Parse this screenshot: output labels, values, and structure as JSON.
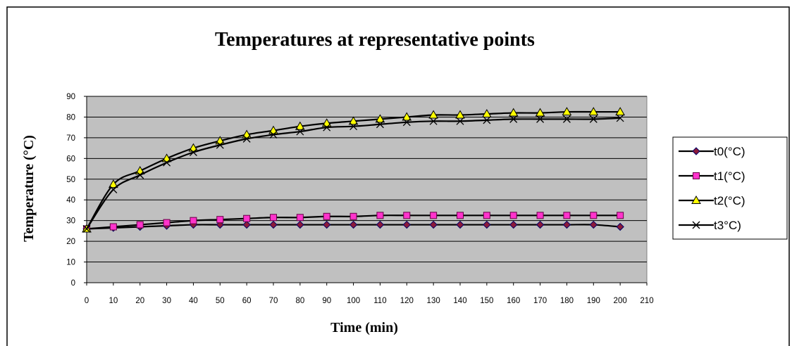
{
  "chart_data": {
    "type": "line",
    "title": "Temperatures at representative points",
    "xlabel": "Time (min)",
    "ylabel": "Temperature (°C)",
    "xlim": [
      0,
      210
    ],
    "ylim": [
      0,
      90
    ],
    "x_ticks": [
      0,
      10,
      20,
      30,
      40,
      50,
      60,
      70,
      80,
      90,
      100,
      110,
      120,
      130,
      140,
      150,
      160,
      170,
      180,
      190,
      200,
      210
    ],
    "y_ticks": [
      0,
      10,
      20,
      30,
      40,
      50,
      60,
      70,
      80,
      90
    ],
    "grid": "horizontal",
    "legend_position": "right",
    "x": [
      0,
      10,
      20,
      30,
      40,
      50,
      60,
      70,
      80,
      90,
      100,
      110,
      120,
      130,
      140,
      150,
      160,
      170,
      180,
      190,
      200
    ],
    "series": [
      {
        "name": "t0(°C)",
        "marker": "diamond",
        "marker_color": "#8b1a3a",
        "values": [
          26,
          26.5,
          27,
          27.5,
          28,
          28,
          28,
          28,
          28,
          28,
          28,
          28,
          28,
          28,
          28,
          28,
          28,
          28,
          28,
          28,
          27
        ]
      },
      {
        "name": "t1(°C)",
        "marker": "square",
        "marker_color": "#ff33cc",
        "values": [
          26,
          27,
          28,
          29,
          30,
          30.5,
          31,
          31.5,
          31.5,
          32,
          32,
          32.5,
          32.5,
          32.5,
          32.5,
          32.5,
          32.5,
          32.5,
          32.5,
          32.5,
          32.5
        ]
      },
      {
        "name": "t2(°C)",
        "marker": "triangle",
        "marker_color": "#ffff00",
        "values": [
          26,
          47.5,
          54,
          60,
          65,
          68.5,
          71.5,
          73.5,
          75.5,
          77,
          78,
          79,
          80,
          81,
          81,
          81.5,
          82,
          82,
          82.5,
          82.5,
          82.5
        ]
      },
      {
        "name": "t3°C)",
        "marker": "x",
        "marker_color": "#000000",
        "values": [
          26,
          45,
          52,
          58,
          63,
          66.5,
          69.5,
          71.5,
          73,
          75,
          75.5,
          76.5,
          77.5,
          78,
          78,
          78.5,
          79,
          79,
          79,
          79,
          79.5
        ]
      }
    ]
  },
  "colors": {
    "plot_background": "#c0c0c0",
    "line": "#000000",
    "frame": "#000000"
  }
}
